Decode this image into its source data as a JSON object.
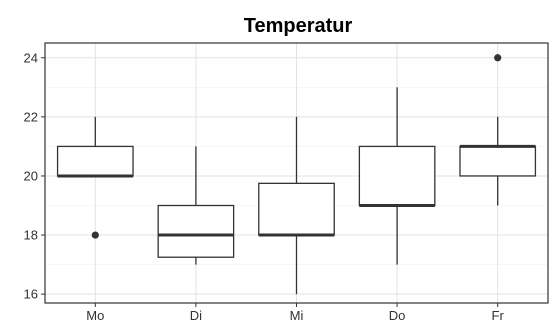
{
  "chart_data": {
    "type": "boxplot",
    "title": "Temperatur",
    "xlabel": "",
    "ylabel": "",
    "categories": [
      "Mo",
      "Di",
      "Mi",
      "Do",
      "Fr"
    ],
    "ylim": [
      15.7,
      24.5
    ],
    "yticks": [
      16,
      18,
      20,
      22,
      24
    ],
    "grid": true,
    "boxes": [
      {
        "category": "Mo",
        "whisker_low": 20,
        "q1": 20,
        "median": 20,
        "q3": 21,
        "whisker_high": 22,
        "outliers": [
          18
        ]
      },
      {
        "category": "Di",
        "whisker_low": 17,
        "q1": 17.25,
        "median": 18,
        "q3": 19,
        "whisker_high": 21,
        "outliers": []
      },
      {
        "category": "Mi",
        "whisker_low": 16,
        "q1": 18,
        "median": 18,
        "q3": 19.75,
        "whisker_high": 22,
        "outliers": []
      },
      {
        "category": "Do",
        "whisker_low": 17,
        "q1": 19,
        "median": 19,
        "q3": 21,
        "whisker_high": 23,
        "outliers": []
      },
      {
        "category": "Fr",
        "whisker_low": 19,
        "q1": 20,
        "median": 21,
        "q3": 21,
        "whisker_high": 22,
        "outliers": [
          24
        ]
      }
    ]
  }
}
